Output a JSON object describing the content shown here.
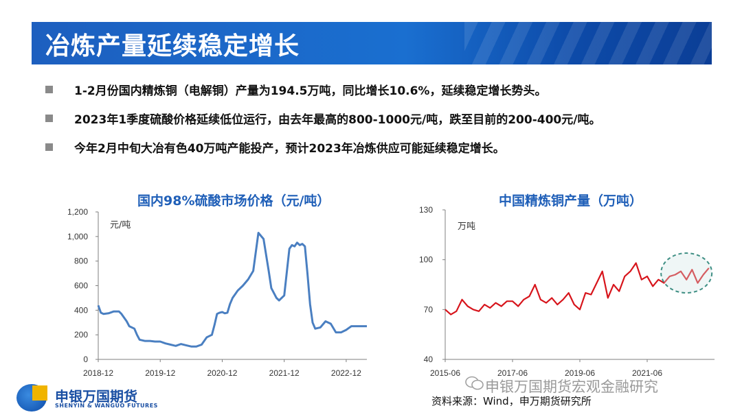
{
  "slide": {
    "title": "冶炼产量延续稳定增长",
    "bullets": [
      "1-2月份国内精炼铜（电解铜）产量为194.5万吨，同比增长10.6%，延续稳定增长势头。",
      "2023年1季度硫酸价格延续低位运行，由去年最高的800-1000元/吨，跌至目前的200-400元/吨。",
      "今年2月中旬大冶有色40万吨产能投产，预计2023年冶炼供应可能延续稳定增长。"
    ],
    "logo_cn": "申银万国期货",
    "logo_en": "SHENYIN & WANGUO FUTURES",
    "watermark": "申银万国期货宏观金融研究",
    "source": "资料来源：Wind，申万期货研究所",
    "colors": {
      "banner": "#1a6fd0",
      "accent": "#1f5fb8",
      "line_left": "#4a7fc1",
      "line_right": "#d7141b",
      "highlight": "#3f8f84"
    }
  },
  "chart_data": [
    {
      "type": "line",
      "title": "国内98%硫酸市场价格（元/吨）",
      "ylabel": "元/吨",
      "xlabel": "",
      "ylim": [
        0,
        1200
      ],
      "yticks": [
        "0",
        "200",
        "400",
        "600",
        "800",
        "1,000",
        "1,200"
      ],
      "yticks_values": [
        0,
        200,
        400,
        600,
        800,
        1000,
        1200
      ],
      "xticks": [
        "2018-12",
        "2019-12",
        "2020-12",
        "2021-12",
        "2022-12"
      ],
      "xlim": [
        0,
        52
      ],
      "xticks_values": [
        0,
        12,
        24,
        36,
        48
      ],
      "grid": false,
      "series": [
        {
          "color": "#4a7fc1",
          "x": [
            0,
            0.5,
            1,
            2,
            3,
            4,
            4.5,
            5,
            5.5,
            6,
            7,
            7.5,
            8,
            9,
            10,
            11,
            12,
            13,
            14,
            15,
            16,
            17,
            18,
            19,
            20,
            21,
            22,
            22.5,
            23,
            23.5,
            24,
            24.5,
            25,
            25.5,
            26,
            26.5,
            27,
            28,
            29,
            30,
            31,
            32,
            33,
            33.5,
            34,
            34.5,
            35,
            35.5,
            36,
            37,
            37.5,
            38,
            38.5,
            39,
            39.5,
            40,
            40.5,
            41,
            41.5,
            42,
            43,
            44,
            45,
            46,
            47,
            48,
            49,
            50,
            51,
            52
          ],
          "values": [
            440,
            380,
            370,
            375,
            390,
            390,
            370,
            340,
            310,
            270,
            250,
            200,
            160,
            150,
            150,
            145,
            145,
            130,
            120,
            110,
            125,
            115,
            105,
            105,
            120,
            180,
            200,
            280,
            370,
            380,
            385,
            375,
            380,
            450,
            500,
            530,
            560,
            600,
            650,
            720,
            1030,
            980,
            720,
            580,
            540,
            500,
            480,
            500,
            520,
            900,
            930,
            920,
            950,
            930,
            940,
            920,
            700,
            450,
            300,
            250,
            260,
            310,
            290,
            220,
            220,
            240,
            270,
            270,
            270,
            270
          ]
        }
      ]
    },
    {
      "type": "line",
      "title": "中国精炼铜产量（万吨）",
      "ylabel": "万吨",
      "xlabel": "",
      "ylim": [
        40,
        130
      ],
      "yticks": [
        "40",
        "70",
        "100",
        "130"
      ],
      "yticks_values": [
        40,
        70,
        100,
        130
      ],
      "xticks": [
        "2015-06",
        "2017-06",
        "2019-06",
        "2021-06"
      ],
      "xlim": [
        0,
        96
      ],
      "xticks_values": [
        0,
        24,
        48,
        72
      ],
      "grid": false,
      "annotation": "circled recent period",
      "series": [
        {
          "color": "#d7141b",
          "x": [
            0,
            2,
            4,
            6,
            8,
            10,
            12,
            14,
            16,
            18,
            20,
            22,
            24,
            26,
            28,
            30,
            32,
            34,
            36,
            38,
            40,
            42,
            44,
            46,
            48,
            50,
            52,
            54,
            56,
            58,
            60,
            62,
            64,
            66,
            68,
            70,
            72,
            74,
            76,
            78,
            80,
            82,
            84,
            86,
            88,
            90,
            92,
            94
          ],
          "values": [
            70,
            67,
            69,
            76,
            72,
            70,
            69,
            73,
            71,
            74,
            72,
            75,
            75,
            72,
            76,
            78,
            85,
            76,
            74,
            77,
            73,
            76,
            80,
            73,
            70,
            80,
            79,
            86,
            93,
            77,
            85,
            81,
            90,
            93,
            98,
            88,
            90,
            84,
            88,
            86,
            90,
            91,
            93,
            88,
            94,
            86,
            91,
            95
          ]
        }
      ]
    }
  ]
}
